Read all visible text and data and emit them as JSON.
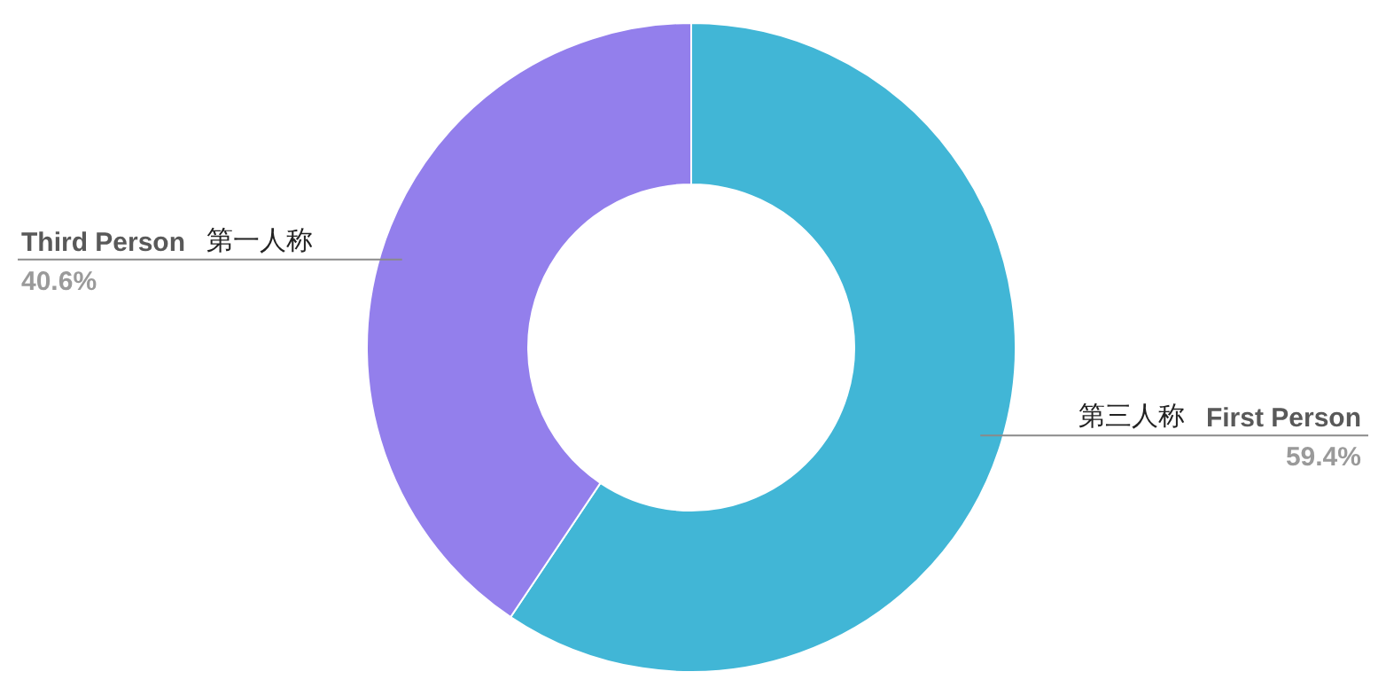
{
  "chart_data": {
    "type": "donut",
    "categories": [
      "First Person",
      "Third Person"
    ],
    "values": [
      59.4,
      40.6
    ],
    "colors": [
      "#41b6d6",
      "#937fec"
    ],
    "value_labels": [
      "59.4%",
      "40.6%"
    ],
    "annotations": [
      "第三人称",
      "第一人称"
    ]
  }
}
